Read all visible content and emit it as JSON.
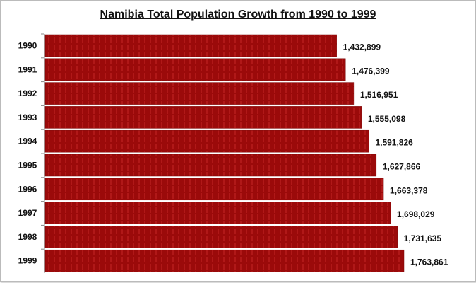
{
  "chart_data": {
    "type": "bar",
    "orientation": "horizontal",
    "title": "Namibia Total Population Growth from 1990 to 1999",
    "categories": [
      "1990",
      "1991",
      "1992",
      "1993",
      "1994",
      "1995",
      "1996",
      "1997",
      "1998",
      "1999"
    ],
    "values": [
      1432899,
      1476399,
      1516951,
      1555098,
      1591826,
      1627866,
      1663378,
      1698029,
      1731635,
      1763861
    ],
    "data_labels": [
      "1,432,899",
      "1,476,399",
      "1,516,951",
      "1,555,098",
      "1,591,826",
      "1,627,866",
      "1,663,378",
      "1,698,029",
      "1,731,635",
      "1,763,861"
    ],
    "xlim": [
      0,
      2000000
    ],
    "grid": false,
    "legend": "none",
    "bar_color": "#9b0a0a"
  }
}
